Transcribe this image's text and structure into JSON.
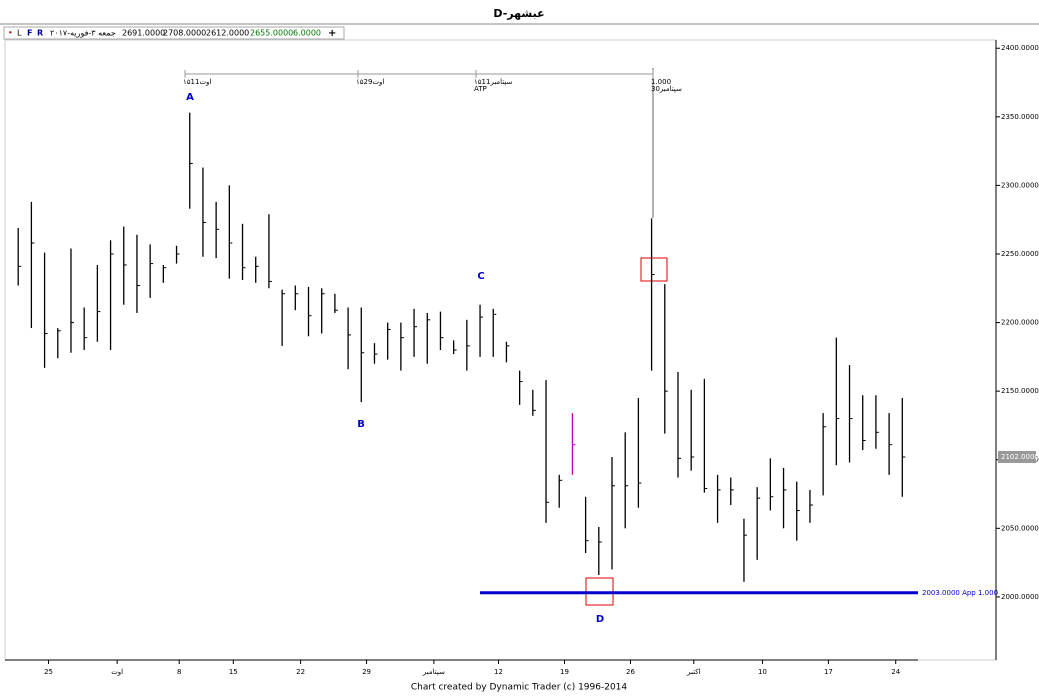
{
  "title": "D-عبشهر",
  "toolbar": {
    "items": [
      "•",
      "L",
      "F",
      "R"
    ],
    "date": "جمعه ۳-فوریه-۲۰۱۷",
    "values": [
      "2691.0000",
      "2708.0000",
      "2612.0000",
      "2655.0000",
      "6.0000"
    ],
    "add": "+"
  },
  "footer": "Chart created by Dynamic Trader  (c) 1996-2014",
  "chart_data": {
    "type": "ohlc",
    "x": [
      0,
      1,
      2,
      3,
      4,
      5,
      6,
      7,
      8,
      9,
      10,
      11,
      12,
      13,
      14,
      15,
      16,
      17,
      18,
      19,
      20,
      21,
      22,
      23,
      24,
      25,
      26,
      27,
      28,
      29,
      30,
      31,
      32,
      33,
      34,
      35,
      36,
      37,
      38,
      39,
      40,
      41,
      42,
      43,
      44,
      45,
      46,
      47,
      48,
      49,
      50,
      51,
      52,
      53,
      54,
      55,
      56,
      57,
      58,
      59,
      60,
      61,
      62,
      63,
      64,
      65,
      66,
      67
    ],
    "high": [
      2269,
      2288,
      2251,
      2196,
      2254,
      2211,
      2242,
      2260,
      2270,
      2264,
      2257,
      2242,
      2256,
      2353,
      2313,
      2288,
      2300,
      2272,
      2248,
      2279,
      2224,
      2227,
      2226,
      2225,
      2221,
      2211,
      2211,
      2185,
      2200,
      2200,
      2210,
      2207,
      2208,
      2187,
      2202,
      2213,
      2210,
      2186,
      2165,
      2151,
      2158,
      2089,
      2134,
      2073,
      2051,
      2102,
      2120,
      2145,
      2276,
      2228,
      2164,
      2151,
      2159,
      2089,
      2087,
      2057,
      2080,
      2101,
      2094,
      2084,
      2078,
      2134,
      2189,
      2169,
      2147,
      2147,
      2134,
      2145
    ],
    "low": [
      2227,
      2196,
      2167,
      2174,
      2178,
      2180,
      2186,
      2180,
      2213,
      2207,
      2218,
      2229,
      2243,
      2283,
      2248,
      2247,
      2232,
      2231,
      2229,
      2225,
      2183,
      2209,
      2190,
      2192,
      2207,
      2166,
      2142,
      2170,
      2173,
      2165,
      2175,
      2170,
      2180,
      2177,
      2165,
      2175,
      2175,
      2171,
      2140,
      2132,
      2054,
      2065,
      2089,
      2032,
      2016,
      2020,
      2050,
      2065,
      2165,
      2119,
      2087,
      2092,
      2076,
      2054,
      2067,
      2011,
      2027,
      2063,
      2050,
      2041,
      2054,
      2074,
      2096,
      2098,
      2107,
      2108,
      2089,
      2073
    ],
    "close": [
      2241,
      2258,
      2192,
      2194,
      2200,
      2189,
      2208,
      2250,
      2242,
      2227,
      2243,
      2240,
      2250,
      2316,
      2273,
      2268,
      2258,
      2240,
      2241,
      2230,
      2221,
      2221,
      2205,
      2221,
      2209,
      2191,
      2178,
      2177,
      2195,
      2189,
      2197,
      2202,
      2189,
      2180,
      2183,
      2204,
      2206,
      2183,
      2157,
      2136,
      2069,
      2085,
      2111,
      2041,
      2040,
      2081,
      2081,
      2083,
      2235,
      2150,
      2101,
      2102,
      2079,
      2078,
      2078,
      2045,
      2072,
      2073,
      2078,
      2063,
      2067,
      2124,
      2130,
      2130,
      2114,
      2120,
      2111,
      2102
    ],
    "color": "#000000",
    "highlight": {
      "index": 42,
      "color": "#c000c0"
    },
    "xlim": [
      -1,
      74.1
    ],
    "ylim": [
      1954,
      2406
    ],
    "xticks": [
      {
        "value": 2.3,
        "label": "25"
      },
      {
        "value": 7.5,
        "label": "اوت"
      },
      {
        "value": 12.2,
        "label": "8"
      },
      {
        "value": 16.3,
        "label": "15"
      },
      {
        "value": 21.4,
        "label": "22"
      },
      {
        "value": 26.4,
        "label": "29"
      },
      {
        "value": 31.5,
        "label": "سپتامبر"
      },
      {
        "value": 36.4,
        "label": "12"
      },
      {
        "value": 41.4,
        "label": "19"
      },
      {
        "value": 46.4,
        "label": "26"
      },
      {
        "value": 51.2,
        "label": "اکتبر"
      },
      {
        "value": 56.4,
        "label": "10"
      },
      {
        "value": 61.4,
        "label": "17"
      },
      {
        "value": 66.5,
        "label": "24"
      }
    ],
    "yticks": [
      {
        "value": 2400,
        "label": "2400.0000"
      },
      {
        "value": 2350,
        "label": "2350.0000"
      },
      {
        "value": 2300,
        "label": "2300.0000"
      },
      {
        "value": 2250,
        "label": "2250.0000"
      },
      {
        "value": 2200,
        "label": "2200.0000"
      },
      {
        "value": 2150,
        "label": "2150.0000"
      },
      {
        "value": 2100,
        "label": "2100.0000"
      },
      {
        "value": 2050,
        "label": "2050.0000"
      },
      {
        "value": 2000,
        "label": "2000.0000"
      }
    ],
    "last_price": {
      "value": 2102,
      "label": "2102.0000"
    },
    "level": {
      "value": 2003,
      "label": "2003.0000  App 1.000",
      "color": "#0000cc"
    },
    "annotations": [
      "A",
      "B",
      "C",
      "D"
    ],
    "ruler": [
      [
        "۱۵اوت11"
      ],
      [
        "۱۵اوت29"
      ],
      [
        "۱۵سپتامبر11",
        "ATP"
      ],
      [
        "1.000",
        "سپتامبر30"
      ]
    ]
  }
}
